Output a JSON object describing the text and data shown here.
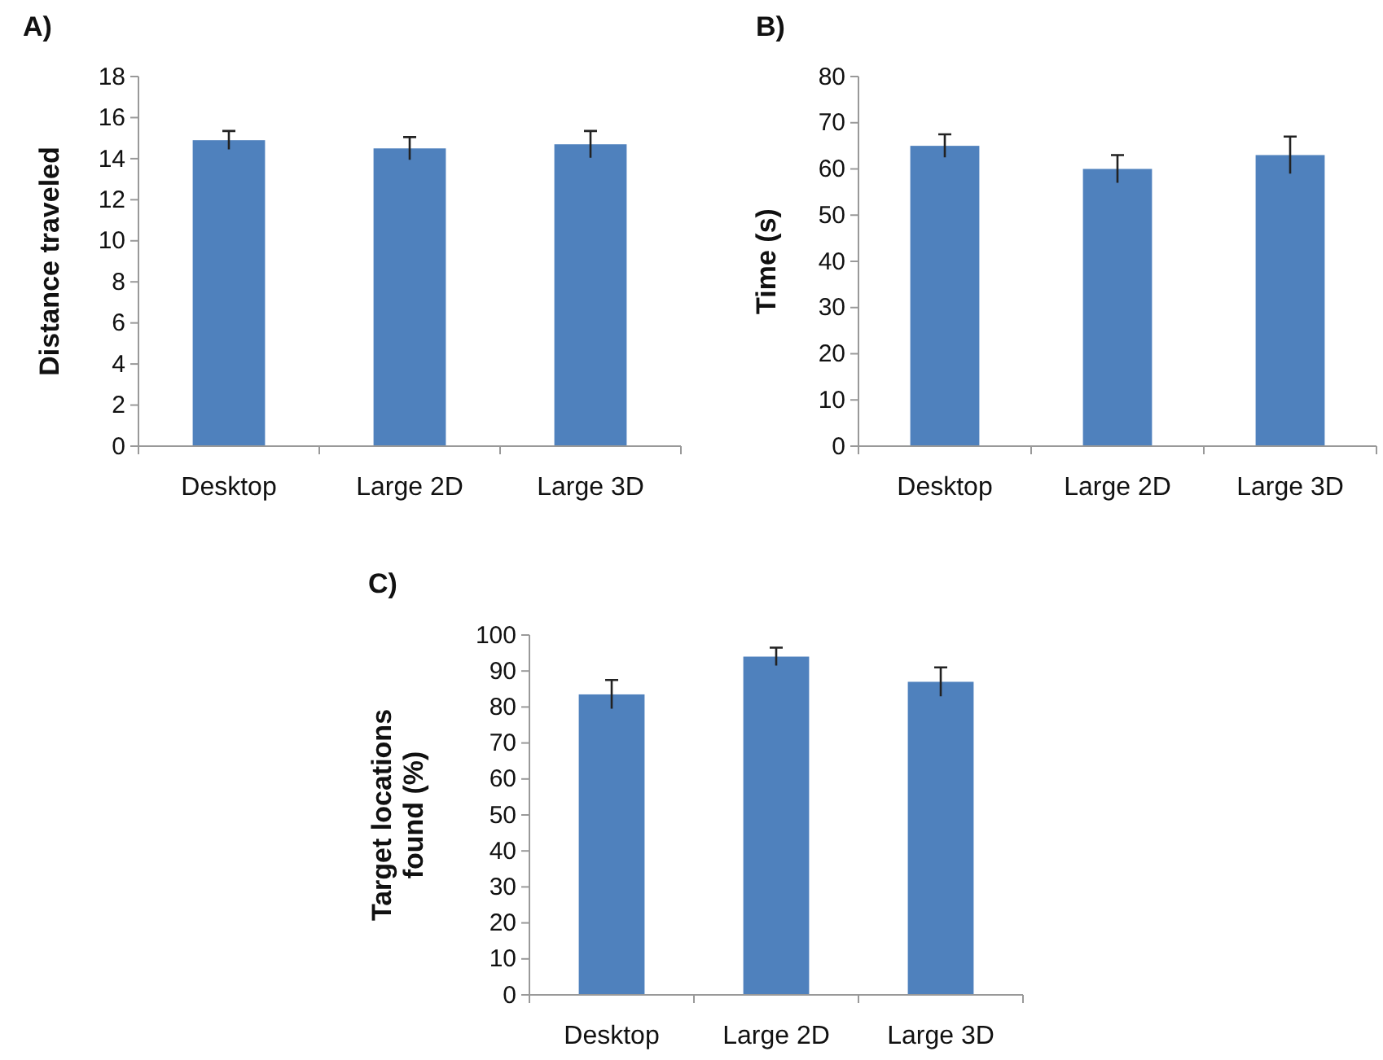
{
  "chart_data": [
    {
      "type": "bar",
      "title": "A)",
      "ylabel": "Distance traveled",
      "categories": [
        "Desktop",
        "Large 2D",
        "Large 3D"
      ],
      "values": [
        14.9,
        14.5,
        14.7
      ],
      "errors": [
        0.45,
        0.55,
        0.65
      ],
      "color": "#4f81bd",
      "ylim": [
        0,
        18
      ],
      "yticks": [
        0,
        2,
        4,
        6,
        8,
        10,
        12,
        14,
        16,
        18
      ],
      "grid": false
    },
    {
      "type": "bar",
      "title": "B)",
      "ylabel": "Time (s)",
      "categories": [
        "Desktop",
        "Large 2D",
        "Large 3D"
      ],
      "values": [
        65,
        60,
        63
      ],
      "errors": [
        2.5,
        3,
        4
      ],
      "color": "#4f81bd",
      "ylim": [
        0,
        80
      ],
      "yticks": [
        0,
        10,
        20,
        30,
        40,
        50,
        60,
        70,
        80
      ],
      "grid": false
    },
    {
      "type": "bar",
      "title": "C)",
      "ylabel": "Target locations found (%)",
      "categories": [
        "Desktop",
        "Large 2D",
        "Large 3D"
      ],
      "values": [
        83.5,
        94,
        87
      ],
      "errors": [
        4,
        2.5,
        4
      ],
      "color": "#4f81bd",
      "ylim": [
        0,
        100
      ],
      "yticks": [
        0,
        10,
        20,
        30,
        40,
        50,
        60,
        70,
        80,
        90,
        100
      ],
      "grid": false
    }
  ]
}
